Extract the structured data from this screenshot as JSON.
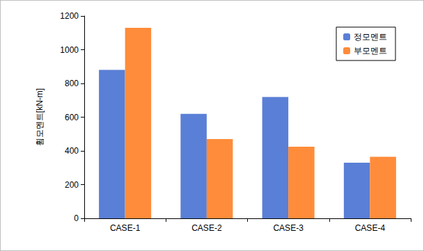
{
  "chart_data": {
    "type": "bar",
    "y_label": "휨모멘트[kN-m]",
    "categories": [
      "CASE-1",
      "CASE-2",
      "CASE-3",
      "CASE-4"
    ],
    "series": [
      {
        "name": "정모멘트",
        "color": "#5a7fd6",
        "values": [
          880,
          620,
          720,
          330
        ]
      },
      {
        "name": "부모멘트",
        "color": "#ff8c3a",
        "values": [
          1130,
          470,
          425,
          365
        ]
      }
    ],
    "ylim": [
      0,
      1200
    ],
    "yticks": [
      0,
      200,
      400,
      600,
      800,
      1000,
      1200
    ],
    "grid": false,
    "legend": "top-right"
  }
}
